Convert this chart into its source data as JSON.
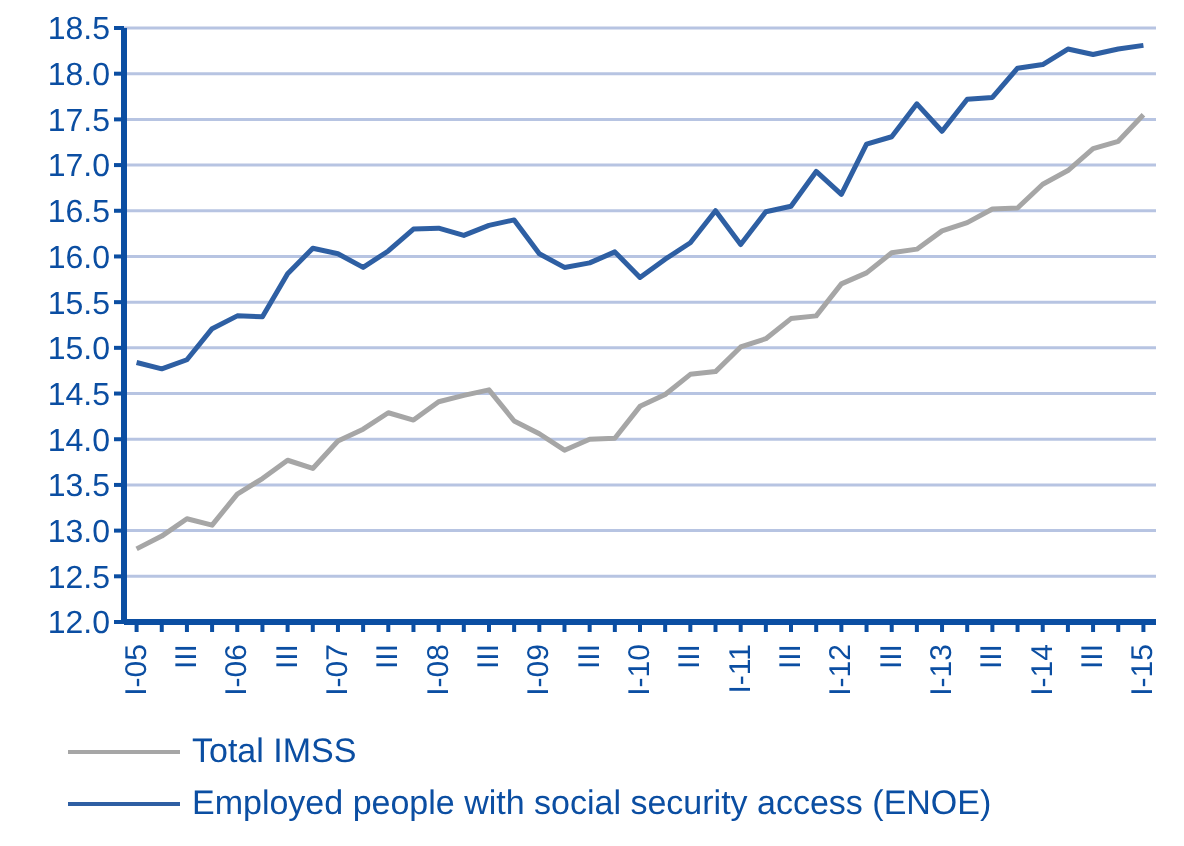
{
  "chart_data": {
    "type": "line",
    "categories": [
      "I-05",
      null,
      "III",
      null,
      "I-06",
      null,
      "III",
      null,
      "I-07",
      null,
      "III",
      null,
      "I-08",
      null,
      "III",
      null,
      "I-09",
      null,
      "III",
      null,
      "I-10",
      null,
      "III",
      null,
      "I-11",
      null,
      "III",
      null,
      "I-12",
      null,
      "III",
      null,
      "I-13",
      null,
      "III",
      null,
      "I-14",
      null,
      "III",
      null,
      "I-15"
    ],
    "series": [
      {
        "name": "Total IMSS",
        "color": "#a6a6a6",
        "values": [
          12.8,
          12.94,
          13.13,
          13.06,
          13.4,
          13.57,
          13.77,
          13.68,
          13.98,
          14.11,
          14.29,
          14.21,
          14.41,
          14.48,
          14.54,
          14.2,
          14.06,
          13.88,
          14.0,
          14.01,
          14.36,
          14.49,
          14.71,
          14.74,
          15.01,
          15.1,
          15.32,
          15.35,
          15.7,
          15.82,
          16.04,
          16.08,
          16.28,
          16.37,
          16.52,
          16.53,
          16.79,
          16.94,
          17.18,
          17.26,
          17.55
        ]
      },
      {
        "name": "Employed people with social security access (ENOE)",
        "color": "#2e5fa3",
        "values": [
          14.84,
          14.77,
          14.87,
          15.21,
          15.35,
          15.34,
          15.81,
          16.09,
          16.03,
          15.88,
          16.06,
          16.3,
          16.31,
          16.23,
          16.34,
          16.4,
          16.03,
          15.88,
          15.93,
          16.05,
          15.77,
          15.97,
          16.15,
          16.5,
          16.13,
          16.49,
          16.55,
          16.93,
          16.68,
          17.23,
          17.31,
          17.67,
          17.37,
          17.72,
          17.74,
          18.06,
          18.1,
          18.27,
          18.21,
          18.27,
          18.31
        ]
      }
    ],
    "ylim": [
      12.0,
      18.5
    ],
    "yticks": [
      {
        "value": 12,
        "label": "12.0"
      },
      {
        "value": 12.5,
        "label": "12.5"
      },
      {
        "value": 13,
        "label": "13.0"
      },
      {
        "value": 13.5,
        "label": "13.5"
      },
      {
        "value": 14,
        "label": "14.0"
      },
      {
        "value": 14.5,
        "label": "14.5"
      },
      {
        "value": 15,
        "label": "15.0"
      },
      {
        "value": 15.5,
        "label": "15.5"
      },
      {
        "value": 16,
        "label": "16.0"
      },
      {
        "value": 16.5,
        "label": "16.5"
      },
      {
        "value": 17,
        "label": "17.0"
      },
      {
        "value": 17.5,
        "label": "17.5"
      },
      {
        "value": 18,
        "label": "18.0"
      },
      {
        "value": 18.5,
        "label": "18.5"
      }
    ],
    "grid": "y",
    "legend": "bottom left",
    "marker": "none",
    "line_style": "solid"
  }
}
